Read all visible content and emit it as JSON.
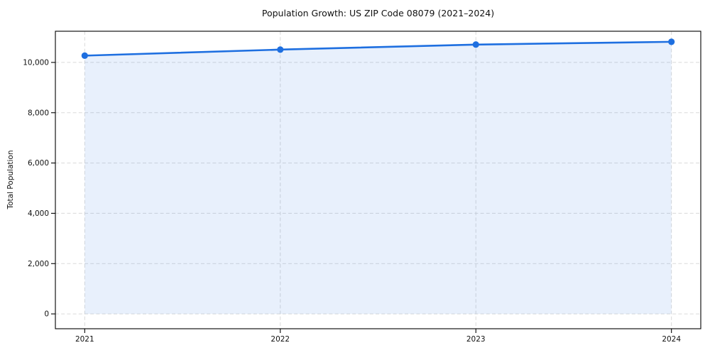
{
  "figure": {
    "background": "#ffffff"
  },
  "chart_data": {
    "type": "line",
    "title": "Population Growth: US ZIP Code 08079 (2021–2024)",
    "xlabel": "",
    "ylabel": "Total Population",
    "x": [
      2021,
      2022,
      2023,
      2024
    ],
    "xtick_labels": [
      "2021",
      "2022",
      "2023",
      "2024"
    ],
    "series": [
      {
        "name": "Total Population",
        "values": [
          10270,
          10510,
          10710,
          10820
        ]
      }
    ],
    "yticks": [
      0,
      2000,
      4000,
      6000,
      8000,
      10000
    ],
    "ytick_labels": [
      "0",
      "2,000",
      "4,000",
      "6,000",
      "8,000",
      "10,000"
    ],
    "xlim": [
      2020.85,
      2024.15
    ],
    "ylim": [
      -590,
      11240
    ],
    "baseline": 0,
    "grid": true,
    "grid_style": "dashed",
    "legend": false,
    "marker": "circle",
    "area_fill": true,
    "line_color": "#1e6fe0",
    "fill_color": "rgba(31, 111, 224, 0.10)",
    "spine_color": "#000000",
    "text_color": "#111111"
  }
}
